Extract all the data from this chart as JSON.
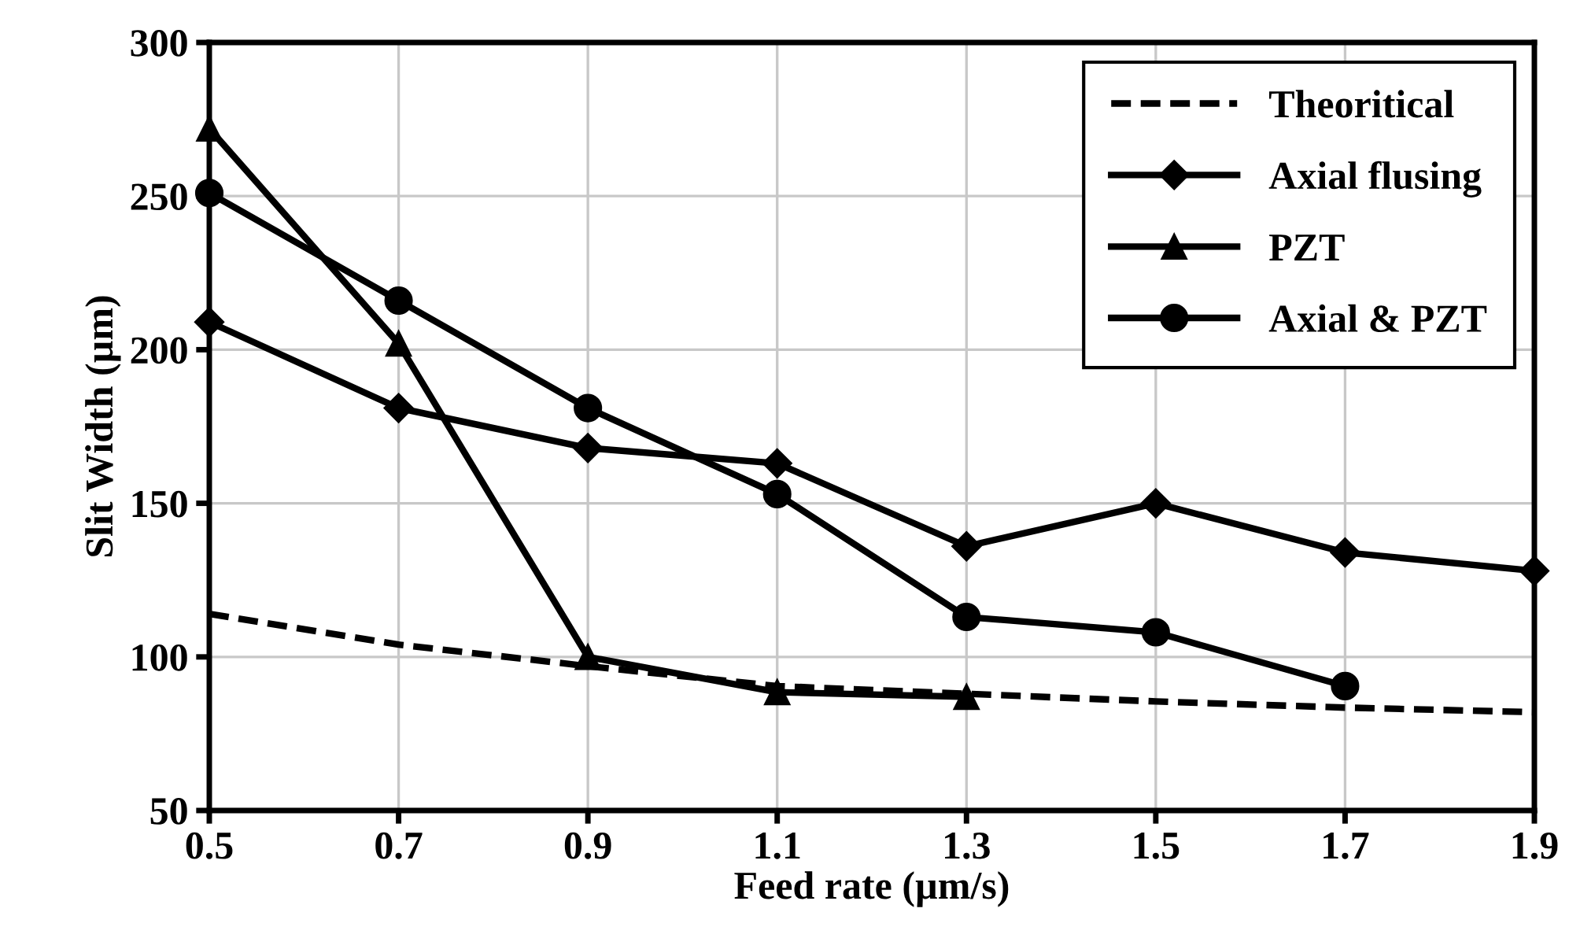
{
  "chart_data": {
    "type": "line",
    "xlabel": "Feed rate (µm/s)",
    "ylabel": "Slit Width (µm)",
    "x": [
      0.5,
      0.7,
      0.9,
      1.1,
      1.3,
      1.5,
      1.7,
      1.9
    ],
    "xlim": [
      0.5,
      1.9
    ],
    "xticks": [
      {
        "value": 0.5,
        "label": "0.5"
      },
      {
        "value": 0.7,
        "label": "0.7"
      },
      {
        "value": 0.9,
        "label": "0.9"
      },
      {
        "value": 1.1,
        "label": "1.1"
      },
      {
        "value": 1.3,
        "label": "1.3"
      },
      {
        "value": 1.5,
        "label": "1.5"
      },
      {
        "value": 1.7,
        "label": "1.7"
      },
      {
        "value": 1.9,
        "label": "1.9"
      }
    ],
    "ylim": [
      50,
      300
    ],
    "yticks": [
      50,
      100,
      150,
      200,
      250,
      300
    ],
    "grid": true,
    "legend": "top right",
    "series": [
      {
        "name": "Theoritical",
        "color": "#000000",
        "line_style": "dashed",
        "marker": "none",
        "values": [
          114,
          104,
          97,
          90.5,
          88,
          85.5,
          83.5,
          82
        ]
      },
      {
        "name": "Axial flusing",
        "color": "#000000",
        "line_style": "solid",
        "marker": "diamond",
        "values": [
          209,
          181,
          168,
          163,
          136,
          150,
          134,
          128
        ]
      },
      {
        "name": "PZT",
        "color": "#000000",
        "line_style": "solid",
        "marker": "triangle",
        "values": [
          272,
          202,
          100,
          88.5,
          87,
          null,
          null,
          null
        ]
      },
      {
        "name": "Axial & PZT",
        "color": "#000000",
        "line_style": "solid",
        "marker": "circle",
        "values": [
          251,
          216,
          181,
          153,
          113,
          108,
          90.5,
          null
        ]
      }
    ]
  }
}
